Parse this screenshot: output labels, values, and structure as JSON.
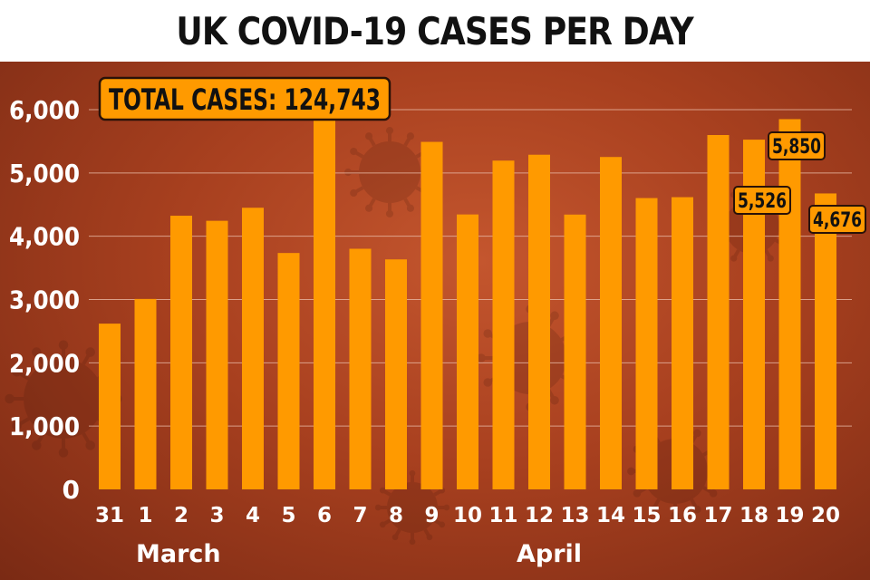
{
  "chart_data": {
    "type": "bar",
    "title": "UK COVID-19 CASES PER DAY",
    "annotation": "TOTAL CASES: 124,743",
    "categories": [
      "31",
      "1",
      "2",
      "3",
      "4",
      "5",
      "6",
      "7",
      "8",
      "9",
      "10",
      "11",
      "12",
      "13",
      "14",
      "15",
      "16",
      "17",
      "18",
      "19",
      "20"
    ],
    "values": [
      2619,
      3009,
      4324,
      4244,
      4450,
      3735,
      5903,
      3802,
      3634,
      5491,
      4344,
      5195,
      5288,
      4342,
      5252,
      4603,
      4617,
      5599,
      5526,
      5850,
      4676
    ],
    "data_labels": [
      {
        "category": "18",
        "text": "5,526"
      },
      {
        "category": "19",
        "text": "5,850"
      },
      {
        "category": "20",
        "text": "4,676"
      }
    ],
    "month_labels": [
      {
        "text": "March",
        "from_category": "31"
      },
      {
        "text": "April",
        "from_category": "10"
      }
    ],
    "y_ticks": [
      0,
      1000,
      2000,
      3000,
      4000,
      5000,
      6000
    ],
    "y_tick_labels": [
      "0",
      "1,000",
      "2,000",
      "3,000",
      "4,000",
      "5,000",
      "6,000"
    ],
    "ylim": [
      0,
      6000
    ],
    "grid": true,
    "colors": {
      "bar": "#ff9a00",
      "callout": "#ff9a00",
      "grid": "#e8b8a4"
    }
  }
}
